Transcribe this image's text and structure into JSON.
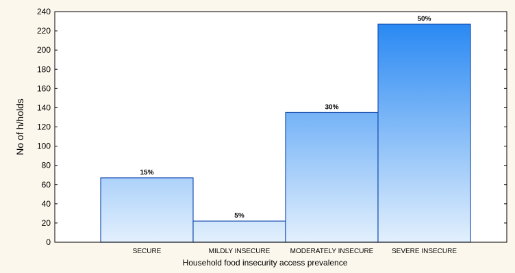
{
  "chart_data": {
    "type": "bar",
    "title": "",
    "xlabel": "Household food insecurity access prevalence",
    "ylabel": "No of h/holds",
    "categories": [
      "SECURE",
      "MILDLY INSECURE",
      "MODERATELY INSECURE",
      "SEVERE INSECURE"
    ],
    "values": [
      67,
      22,
      135,
      227
    ],
    "data_labels": [
      "15%",
      "5%",
      "30%",
      "50%"
    ],
    "ylim": [
      0,
      240
    ],
    "yticks": [
      0,
      20,
      40,
      60,
      80,
      100,
      120,
      140,
      160,
      180,
      200,
      220,
      240
    ],
    "grid": false,
    "legend": "none",
    "colors": {
      "bar_top": "#1f83f2",
      "bar_bottom": "#e3f0fd",
      "bar_edge": "#1a4fb0",
      "plot_background": "#ffffff",
      "page_background": "#fbf7ec"
    }
  }
}
